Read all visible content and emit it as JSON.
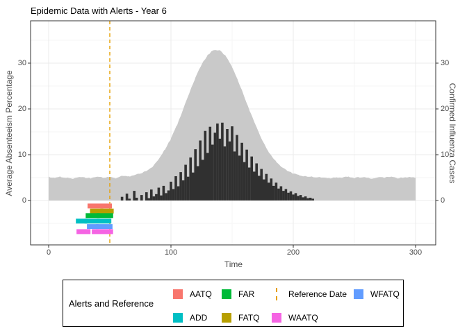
{
  "title": "Epidemic Data with Alerts - Year 6",
  "axes": {
    "x": {
      "label": "Time",
      "tick_values": [
        0,
        100,
        200,
        300
      ],
      "minor_ticks": [
        50,
        150,
        250
      ]
    },
    "y_left": {
      "label": "Average Absenteeism Percentage",
      "tick_values": [
        0,
        10,
        20,
        30
      ],
      "minor_ticks": [
        -5,
        5,
        15,
        25,
        35
      ]
    },
    "y_right": {
      "label": "Confirmed Influenza Cases",
      "tick_values": [
        0,
        10,
        20,
        30
      ]
    }
  },
  "colors": {
    "area_fill": "#c9c9c9",
    "bar_fill": "#303030",
    "reference_line": "#e69f00",
    "panel_border": "#333333",
    "grid_major": "#ebebeb",
    "grid_minor": "#f5f5f5",
    "axis_text": "#4d4d4d"
  },
  "chart_data": {
    "type": "area+bar",
    "title": "Epidemic Data with Alerts - Year 6",
    "xlabel": "Time",
    "ylabel_left": "Average Absenteeism Percentage",
    "ylabel_right": "Confirmed Influenza Cases",
    "x_range": [
      0,
      300
    ],
    "y_ticks": [
      0,
      10,
      20,
      30
    ],
    "grid": true,
    "legend_position": "bottom",
    "reference_date_x": 50,
    "series": [
      {
        "name": "Average Absenteeism Percentage",
        "type": "area",
        "color": "#c9c9c9",
        "x": [
          0,
          5,
          10,
          15,
          20,
          25,
          30,
          35,
          40,
          45,
          50,
          55,
          60,
          65,
          70,
          75,
          80,
          85,
          90,
          95,
          100,
          105,
          110,
          115,
          120,
          125,
          130,
          135,
          140,
          145,
          150,
          155,
          160,
          165,
          170,
          175,
          180,
          185,
          190,
          195,
          200,
          205,
          210,
          215,
          220,
          225,
          230,
          235,
          240,
          245,
          250,
          255,
          260,
          265,
          270,
          275,
          280,
          285,
          290,
          295,
          300
        ],
        "values": [
          5.1,
          4.9,
          5.2,
          5.0,
          4.8,
          5.1,
          5.0,
          4.9,
          5.2,
          5.0,
          5.1,
          4.9,
          5.3,
          5.2,
          5.5,
          5.9,
          6.5,
          7.3,
          9.1,
          11.1,
          13.5,
          16.5,
          19.9,
          23.4,
          26.8,
          29.7,
          31.8,
          32.9,
          32.8,
          31.5,
          29.2,
          26.1,
          22.7,
          19.2,
          15.9,
          13.0,
          10.6,
          8.8,
          7.4,
          6.5,
          5.9,
          5.5,
          5.3,
          5.2,
          5.1,
          5.0,
          4.9,
          5.1,
          5.0,
          5.2,
          4.9,
          5.1,
          5.0,
          4.8,
          5.1,
          5.0,
          5.2,
          4.9,
          5.0,
          5.1,
          5.0
        ]
      },
      {
        "name": "Confirmed Influenza Cases",
        "type": "bar",
        "color": "#303030",
        "x": [
          60,
          62,
          64,
          66,
          68,
          70,
          72,
          74,
          76,
          78,
          80,
          82,
          84,
          86,
          88,
          90,
          92,
          94,
          96,
          98,
          100,
          102,
          104,
          106,
          108,
          110,
          112,
          114,
          116,
          118,
          120,
          122,
          124,
          126,
          128,
          130,
          132,
          134,
          136,
          138,
          140,
          142,
          144,
          146,
          148,
          150,
          152,
          154,
          156,
          158,
          160,
          162,
          164,
          166,
          168,
          170,
          172,
          174,
          176,
          178,
          180,
          182,
          184,
          186,
          188,
          190,
          192,
          194,
          196,
          198,
          200,
          202,
          204,
          206,
          208,
          210,
          212,
          214,
          216
        ],
        "values": [
          0.8,
          0,
          1.5,
          0.4,
          0,
          2.1,
          0.6,
          0,
          1.2,
          0,
          1.8,
          0.5,
          2.4,
          0.9,
          1.4,
          2.8,
          1.1,
          3.2,
          1.6,
          2.2,
          4.1,
          2.5,
          5.3,
          3.1,
          6.2,
          4.4,
          7.8,
          5.2,
          9.4,
          6.1,
          11.2,
          7.5,
          13.1,
          8.9,
          15.2,
          10.4,
          16.1,
          12.2,
          14.8,
          16.8,
          13.5,
          17.0,
          11.8,
          15.6,
          12.9,
          16.2,
          10.7,
          14.3,
          9.8,
          12.6,
          8.4,
          11.1,
          7.2,
          9.6,
          6.3,
          8.1,
          5.4,
          6.9,
          4.6,
          5.8,
          3.9,
          4.8,
          3.2,
          3.9,
          2.6,
          3.1,
          2.1,
          2.5,
          1.7,
          2.0,
          1.3,
          1.6,
          1.0,
          1.2,
          0.7,
          0.9,
          0.5,
          0.6,
          0.4
        ]
      }
    ],
    "alerts": [
      {
        "name": "AATQ",
        "color": "#f8766d",
        "y": -1.2,
        "segments": [
          [
            33.5,
            50
          ]
        ]
      },
      {
        "name": "FATQ",
        "color": "#b79f00",
        "y": -2.3,
        "segments": [
          [
            35.5,
            43
          ],
          [
            44,
            51.5
          ]
        ]
      },
      {
        "name": "FAR",
        "color": "#00ba38",
        "y": -3.3,
        "segments": [
          [
            32,
            40
          ],
          [
            41,
            51
          ]
        ]
      },
      {
        "name": "ADD",
        "color": "#00bfc4",
        "y": -4.5,
        "segments": [
          [
            24,
            30
          ],
          [
            31,
            49.5
          ]
        ]
      },
      {
        "name": "WFATQ",
        "color": "#619cff",
        "y": -5.7,
        "segments": [
          [
            33,
            39
          ],
          [
            40.5,
            50.5
          ]
        ]
      },
      {
        "name": "WAATQ",
        "color": "#f564e3",
        "y": -6.8,
        "segments": [
          [
            24.5,
            32.5
          ],
          [
            37,
            51
          ]
        ]
      }
    ]
  },
  "legend": {
    "title": "Alerts and Reference",
    "entries": [
      {
        "label": "AATQ",
        "color": "#f8766d",
        "key": "square"
      },
      {
        "label": "ADD",
        "color": "#00bfc4",
        "key": "square"
      },
      {
        "label": "FAR",
        "color": "#00ba38",
        "key": "square"
      },
      {
        "label": "FATQ",
        "color": "#b79f00",
        "key": "square"
      },
      {
        "label": "Reference Date",
        "color": "#e69f00",
        "key": "dashed-vline"
      },
      {
        "label": "WAATQ",
        "color": "#f564e3",
        "key": "square"
      },
      {
        "label": "WFATQ",
        "color": "#619cff",
        "key": "square"
      }
    ]
  }
}
